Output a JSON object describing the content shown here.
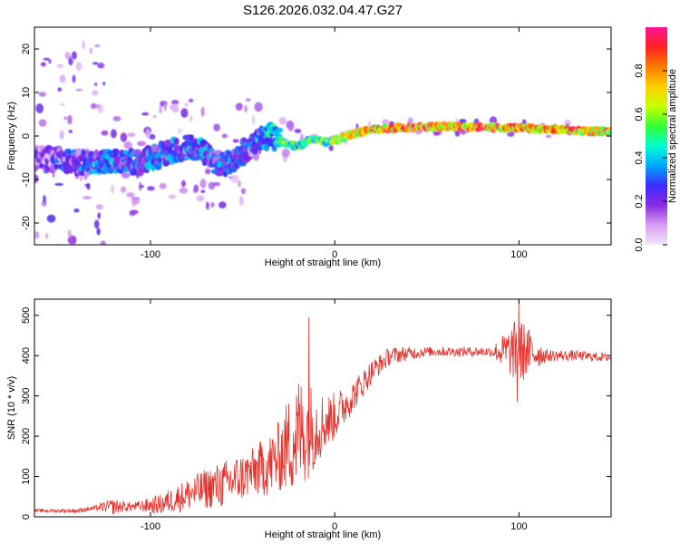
{
  "figure": {
    "title": "S126.2026.032.04.47.G27"
  },
  "chart_data": [
    {
      "type": "heatmap",
      "name": "spectrogram",
      "xlabel": "Height of straight line (km)",
      "ylabel": "Frequency (Hz)",
      "xlim": [
        -163,
        150
      ],
      "ylim": [
        -25,
        25
      ],
      "xticks": [
        -100,
        0,
        100
      ],
      "xtick_labels": [
        "-100",
        "0",
        "100"
      ],
      "yticks": [
        20,
        10,
        0,
        -10,
        -20
      ],
      "ytick_labels": [
        "20",
        "10",
        "0",
        "-10",
        "-20"
      ],
      "colorbar": {
        "label": "Normalized spectral amplitude",
        "range": [
          0.0,
          1.0
        ],
        "ticks": [
          0.0,
          0.2,
          0.4,
          0.6,
          0.8
        ],
        "tick_labels": [
          "0.0",
          "0.2",
          "0.4",
          "0.6",
          "0.8"
        ],
        "colors": [
          "#f4e6fb",
          "#d79ff0",
          "#8a2be2",
          "#3a2bff",
          "#00a8ff",
          "#00ffd0",
          "#33ff33",
          "#c8ff00",
          "#ffd000",
          "#ff7a00",
          "#ff2020",
          "#ff1493"
        ]
      },
      "ridge": {
        "x": [
          -163,
          -140,
          -120,
          -105,
          -95,
          -85,
          -75,
          -65,
          -55,
          -45,
          -35,
          -28,
          -20,
          -12,
          -5,
          0,
          10,
          20,
          40,
          60,
          80,
          100,
          120,
          135,
          150
        ],
        "y": [
          -5,
          -6,
          -6,
          -6,
          -4.5,
          -3,
          -2.5,
          -6,
          -6,
          -2,
          0,
          -1.5,
          -2.5,
          -0.5,
          -1.5,
          -1,
          0.5,
          1.5,
          2,
          2.2,
          2,
          1.8,
          1.5,
          1.2,
          1
        ],
        "amplitude": [
          0.3,
          0.35,
          0.45,
          0.4,
          0.45,
          0.4,
          0.4,
          0.45,
          0.4,
          0.35,
          0.5,
          0.6,
          0.55,
          0.6,
          0.65,
          0.7,
          0.85,
          0.9,
          0.95,
          1.0,
          0.95,
          0.9,
          0.85,
          0.9,
          0.85
        ]
      }
    },
    {
      "type": "line",
      "name": "snr",
      "color": "#e8302a",
      "xlabel": "Height of straight line (km)",
      "ylabel": "SNR (10 * v/v)",
      "xlim": [
        -163,
        150
      ],
      "ylim": [
        0,
        540
      ],
      "xticks": [
        -100,
        0,
        100
      ],
      "xtick_labels": [
        "-100",
        "0",
        "100"
      ],
      "yticks": [
        0,
        100,
        200,
        300,
        400,
        500
      ],
      "ytick_labels": [
        "0",
        "100",
        "200",
        "300",
        "400",
        "500"
      ],
      "trend": {
        "x": [
          -163,
          -140,
          -125,
          -110,
          -95,
          -80,
          -70,
          -60,
          -50,
          -40,
          -35,
          -30,
          -25,
          -20,
          -15,
          -10,
          -5,
          0,
          10,
          20,
          30,
          50,
          70,
          85,
          95,
          100,
          105,
          115,
          130,
          150
        ],
        "y": [
          15,
          15,
          25,
          25,
          30,
          55,
          70,
          80,
          100,
          120,
          130,
          150,
          180,
          205,
          215,
          225,
          235,
          250,
          300,
          360,
          400,
          410,
          410,
          410,
          410,
          410,
          410,
          400,
          400,
          395
        ]
      },
      "noise_amplitude": {
        "x": [
          -163,
          -130,
          -120,
          -110,
          -80,
          -60,
          -45,
          -30,
          -20,
          -12,
          -5,
          10,
          25,
          50,
          85,
          95,
          100,
          105,
          115,
          150
        ],
        "y": [
          4,
          6,
          20,
          10,
          40,
          60,
          60,
          90,
          150,
          110,
          70,
          40,
          25,
          12,
          12,
          60,
          90,
          60,
          15,
          10
        ]
      },
      "spikes": [
        {
          "x": -14,
          "y": 495
        },
        {
          "x": 100,
          "y": 540
        },
        {
          "x": 99,
          "y": 285
        }
      ]
    }
  ]
}
